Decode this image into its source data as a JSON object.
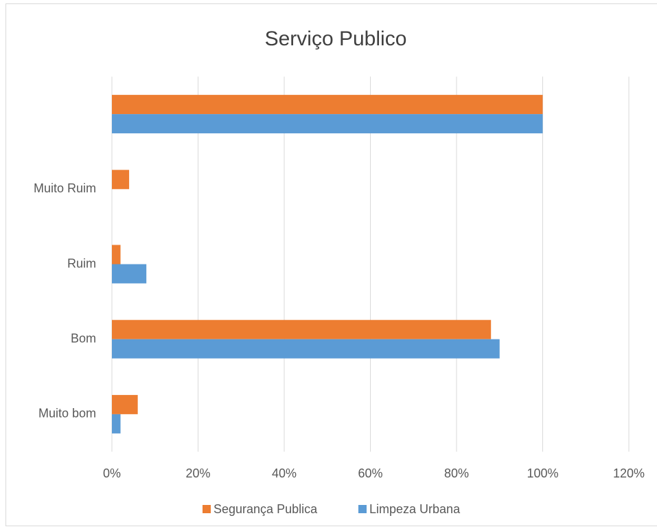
{
  "chart_data": {
    "type": "hbar",
    "title": "Serviço Publico",
    "categories": [
      "Muito bom",
      "Bom",
      "Ruim",
      "Muito Ruim",
      null
    ],
    "series": [
      {
        "name": "Segurança Publica",
        "color": "#ed7d31",
        "values": [
          6,
          88,
          2,
          4,
          100
        ]
      },
      {
        "name": "Limpeza Urbana",
        "color": "#5b9bd5",
        "values": [
          2,
          90,
          8,
          0,
          100
        ]
      }
    ],
    "xlim": [
      0,
      120
    ],
    "xticks": [
      {
        "value": 0,
        "label": "0%"
      },
      {
        "value": 20,
        "label": "20%"
      },
      {
        "value": 40,
        "label": "40%"
      },
      {
        "value": 60,
        "label": "60%"
      },
      {
        "value": 80,
        "label": "80%"
      },
      {
        "value": 100,
        "label": "100%"
      },
      {
        "value": 120,
        "label": "120%"
      }
    ],
    "grid": true,
    "legend": "bottom"
  }
}
